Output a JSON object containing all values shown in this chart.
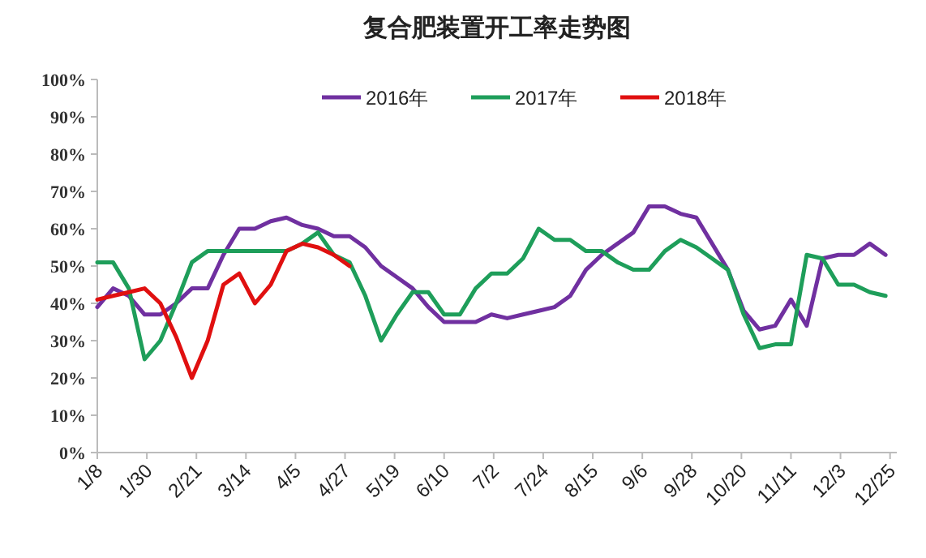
{
  "chart_data": {
    "type": "line",
    "title": "复合肥装置开工率走势图",
    "legend": "top",
    "x": [
      "--01-08",
      "--01-15",
      "--01-22",
      "--01-29",
      "--02-05",
      "--02-12",
      "--02-19",
      "--02-26",
      "--03-04",
      "--03-11",
      "--03-18",
      "--03-25",
      "--04-01",
      "--04-08",
      "--04-15",
      "--04-22",
      "--04-29",
      "--05-06",
      "--05-13",
      "--05-20",
      "--05-27",
      "--06-03",
      "--06-10",
      "--06-17",
      "--06-24",
      "--07-01",
      "--07-08",
      "--07-15",
      "--07-22",
      "--07-29",
      "--08-05",
      "--08-12",
      "--08-19",
      "--08-26",
      "--09-02",
      "--09-09",
      "--09-16",
      "--09-23",
      "--09-30",
      "--10-07",
      "--10-14",
      "--10-21",
      "--10-28",
      "--11-04",
      "--11-11",
      "--11-18",
      "--11-25",
      "--12-02",
      "--12-09",
      "--12-16",
      "--12-23"
    ],
    "series": [
      {
        "name": "2016年",
        "color": "#7030a0",
        "values": [
          39,
          44,
          42,
          37,
          37,
          40,
          44,
          44,
          53,
          60,
          60,
          62,
          63,
          61,
          60,
          58,
          58,
          55,
          50,
          47,
          44,
          39,
          35,
          35,
          35,
          37,
          36,
          37,
          38,
          39,
          42,
          49,
          53,
          56,
          59,
          66,
          66,
          64,
          63,
          56,
          49,
          38,
          33,
          34,
          41,
          34,
          52,
          53,
          53,
          56,
          53
        ]
      },
      {
        "name": "2017年",
        "color": "#1e9e5a",
        "values": [
          51,
          51,
          44,
          25,
          30,
          40,
          51,
          54,
          54,
          54,
          54,
          54,
          54,
          56,
          59,
          53,
          51,
          42,
          30,
          37,
          43,
          43,
          37,
          37,
          44,
          48,
          48,
          52,
          60,
          57,
          57,
          54,
          54,
          51,
          49,
          49,
          54,
          57,
          55,
          52,
          49,
          37,
          28,
          29,
          29,
          53,
          52,
          45,
          45,
          43,
          42
        ]
      },
      {
        "name": "2018年",
        "color": "#e01010",
        "x": [
          "--01-08",
          "--01-15",
          "--01-22",
          "--01-29",
          "--02-05",
          "--02-12",
          "--02-19",
          "--02-26",
          "--03-04",
          "--03-11",
          "--03-18",
          "--03-25",
          "--04-01",
          "--04-08",
          "--04-15",
          "--04-22",
          "--04-29"
        ],
        "values": [
          41,
          42,
          43,
          44,
          40,
          31,
          20,
          30,
          45,
          48,
          40,
          45,
          54,
          56,
          55,
          53,
          50
        ]
      }
    ],
    "xlim": [
      "--01-08",
      "--12-28"
    ],
    "xticks": [
      {
        "value": "--01-08",
        "label": "1/8"
      },
      {
        "value": "--01-30",
        "label": "1/30"
      },
      {
        "value": "--02-21",
        "label": "2/21"
      },
      {
        "value": "--03-14",
        "label": "3/14"
      },
      {
        "value": "--04-05",
        "label": "4/5"
      },
      {
        "value": "--04-27",
        "label": "4/27"
      },
      {
        "value": "--05-19",
        "label": "5/19"
      },
      {
        "value": "--06-10",
        "label": "6/10"
      },
      {
        "value": "--07-02",
        "label": "7/2"
      },
      {
        "value": "--07-24",
        "label": "7/24"
      },
      {
        "value": "--08-15",
        "label": "8/15"
      },
      {
        "value": "--09-06",
        "label": "9/6"
      },
      {
        "value": "--09-28",
        "label": "9/28"
      },
      {
        "value": "--10-20",
        "label": "10/20"
      },
      {
        "value": "--11-11",
        "label": "11/11"
      },
      {
        "value": "--12-03",
        "label": "12/3"
      },
      {
        "value": "--12-25",
        "label": "12/25"
      }
    ],
    "ylim": [
      0,
      100
    ],
    "yticks": [
      {
        "value": 0,
        "label": "0%"
      },
      {
        "value": 10,
        "label": "10%"
      },
      {
        "value": 20,
        "label": "20%"
      },
      {
        "value": 30,
        "label": "30%"
      },
      {
        "value": 40,
        "label": "40%"
      },
      {
        "value": 50,
        "label": "50%"
      },
      {
        "value": 60,
        "label": "60%"
      },
      {
        "value": 70,
        "label": "70%"
      },
      {
        "value": 80,
        "label": "80%"
      },
      {
        "value": 90,
        "label": "90%"
      },
      {
        "value": 100,
        "label": "100%"
      }
    ]
  }
}
